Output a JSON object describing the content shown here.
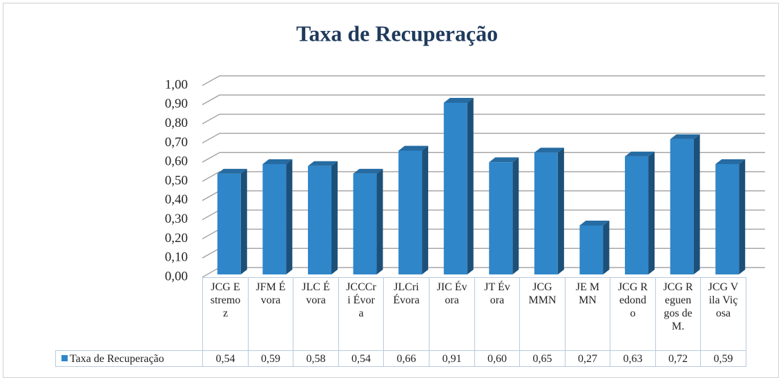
{
  "chart_data": {
    "type": "bar",
    "title": "Taxa de Recuperação",
    "categories": [
      "JCG Estremoz",
      "JFM Évora",
      "JLC Évora",
      "JCCCri Évora",
      "JLCri Évora",
      "JIC Évora",
      "JT Évora",
      "JCG MMN",
      "JE MMN",
      "JCG Redondo",
      "JCG Reguengos de M.",
      "JCG Vila Viçosa"
    ],
    "series": [
      {
        "name": "Taxa de Recuperação",
        "color": "#2f86c9",
        "values": [
          0.54,
          0.59,
          0.58,
          0.54,
          0.66,
          0.91,
          0.6,
          0.65,
          0.27,
          0.63,
          0.72,
          0.59
        ],
        "value_labels": [
          "0,54",
          "0,59",
          "0,58",
          "0,54",
          "0,66",
          "0,91",
          "0,60",
          "0,65",
          "0,27",
          "0,63",
          "0,72",
          "0,59"
        ]
      }
    ],
    "ylim": [
      0,
      1
    ],
    "yticks": [
      {
        "value": 0,
        "label": "0,00"
      },
      {
        "value": 0.1,
        "label": "0,10"
      },
      {
        "value": 0.2,
        "label": "0,20"
      },
      {
        "value": 0.3,
        "label": "0,30"
      },
      {
        "value": 0.4,
        "label": "0,40"
      },
      {
        "value": 0.5,
        "label": "0,50"
      },
      {
        "value": 0.6,
        "label": "0,60"
      },
      {
        "value": 0.7,
        "label": "0,70"
      },
      {
        "value": 0.8,
        "label": "0,80"
      },
      {
        "value": 0.9,
        "label": "0,90"
      },
      {
        "value": 1,
        "label": "1,00"
      }
    ],
    "grid": true
  }
}
